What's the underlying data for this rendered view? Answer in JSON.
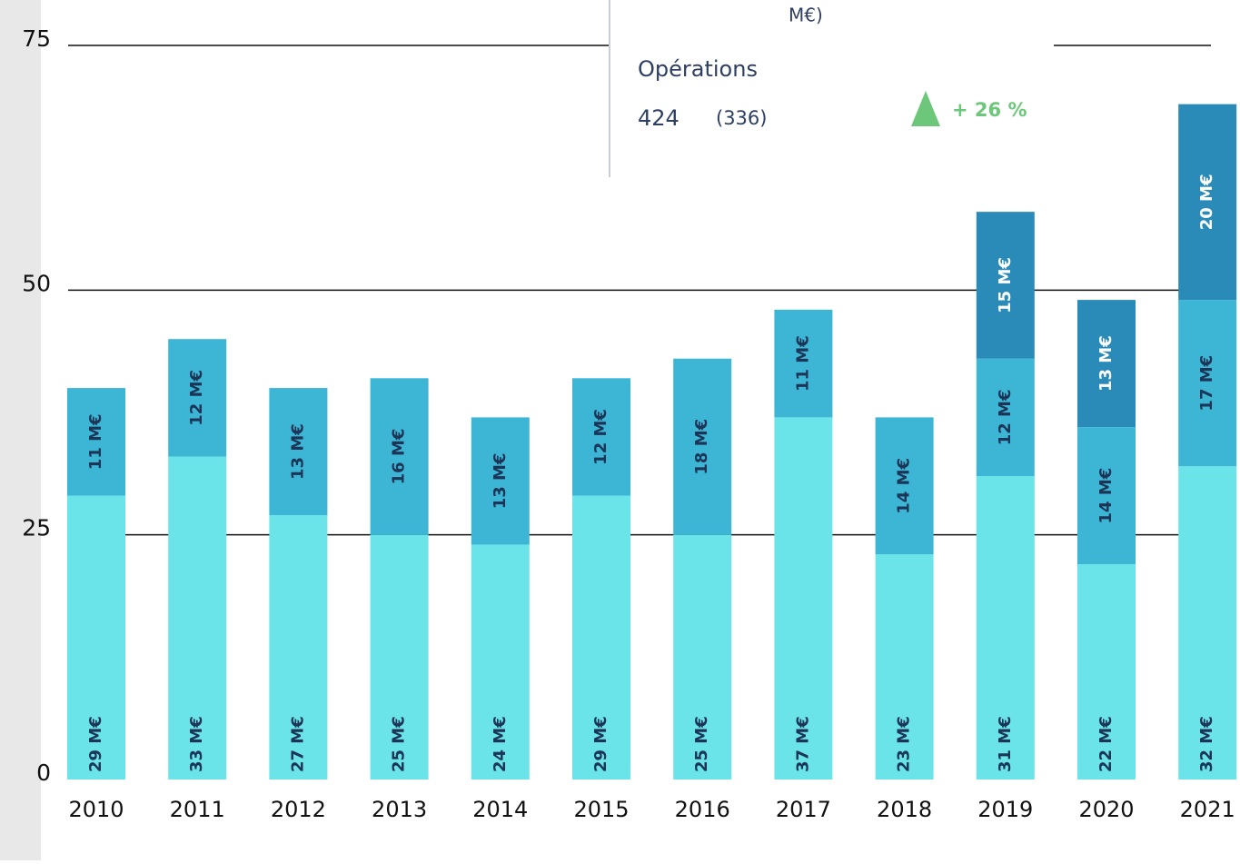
{
  "chart_data": {
    "type": "stacked_bar",
    "categories": [
      "2010",
      "2011",
      "2012",
      "2013",
      "2014",
      "2015",
      "2016",
      "2017",
      "2018",
      "2019",
      "2020",
      "2021"
    ],
    "series": [
      {
        "color": "#6ae4e8",
        "values": [
          29,
          33,
          27,
          25,
          24,
          29,
          25,
          37,
          23,
          31,
          22,
          32
        ],
        "value_labels": [
          "29 M€",
          "33 M€",
          "27 M€",
          "25 M€",
          "24 M€",
          "29 M€",
          "25 M€",
          "37 M€",
          "23 M€",
          "31 M€",
          "22 M€",
          "32 M€"
        ]
      },
      {
        "color": "#3db6d6",
        "values": [
          11,
          12,
          13,
          16,
          13,
          12,
          18,
          11,
          14,
          12,
          14,
          17
        ],
        "value_labels": [
          "11 M€",
          "12 M€",
          "13 M€",
          "16 M€",
          "13 M€",
          "12 M€",
          "18 M€",
          "11 M€",
          "14 M€",
          "12 M€",
          "14 M€",
          "17 M€"
        ]
      },
      {
        "color": "#2a8ab8",
        "values": [
          null,
          null,
          null,
          null,
          null,
          null,
          null,
          null,
          null,
          15,
          13,
          20
        ],
        "value_labels": [
          null,
          null,
          null,
          null,
          null,
          null,
          null,
          null,
          null,
          "15 M€",
          "13 M€",
          "20 M€"
        ]
      }
    ],
    "ylim": [
      0,
      75
    ],
    "yticks": [
      0,
      25,
      50,
      75
    ],
    "grid": true
  },
  "overlay": {
    "fragment": "M€)",
    "label": "Opérations",
    "value": "424",
    "previous": "(336)",
    "change": "+ 26 %"
  }
}
